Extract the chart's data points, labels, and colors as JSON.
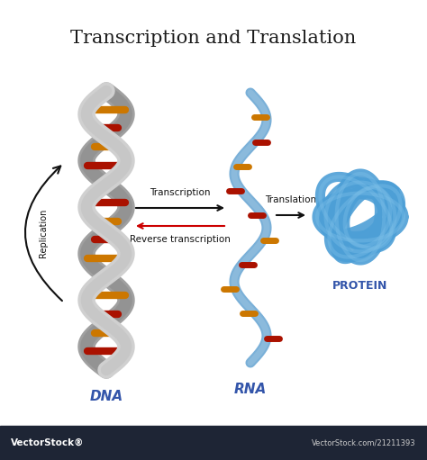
{
  "title": "Transcription and Translation",
  "title_fontsize": 15,
  "bg_color": "#ffffff",
  "dna_label": "DNA",
  "rna_label": "RNA",
  "protein_label": "PROTEIN",
  "replication_label": "Replication",
  "transcription_label": "Transcription",
  "reverse_transcription_label": "Reverse transcription",
  "translation_label": "Translation",
  "dna_strand1_color": "#d0d0d0",
  "dna_strand2_color": "#a0a0a0",
  "rna_color": "#7ab0d8",
  "protein_color": "#4d9fd6",
  "label_color": "#3355aa",
  "arrow_color": "#111111",
  "rev_arrow_color": "#cc0000",
  "footer_bg": "#1e2535",
  "footer_text1": "VectorStock®",
  "footer_text2": "VectorStock.com/21211393",
  "rung_colors_dna": [
    "#aa1100",
    "#cc7700",
    "#aa1100",
    "#cc7700",
    "#aa1100",
    "#cc7700",
    "#aa1100",
    "#cc7700",
    "#aa1100",
    "#cc7700",
    "#aa1100",
    "#cc7700",
    "#aa1100",
    "#cc7700"
  ],
  "rung_colors_rna": [
    "#aa1100",
    "#cc7700",
    "#cc7700",
    "#aa1100",
    "#cc7700",
    "#aa1100",
    "#aa1100",
    "#cc7700",
    "#aa1100",
    "#cc7700"
  ]
}
